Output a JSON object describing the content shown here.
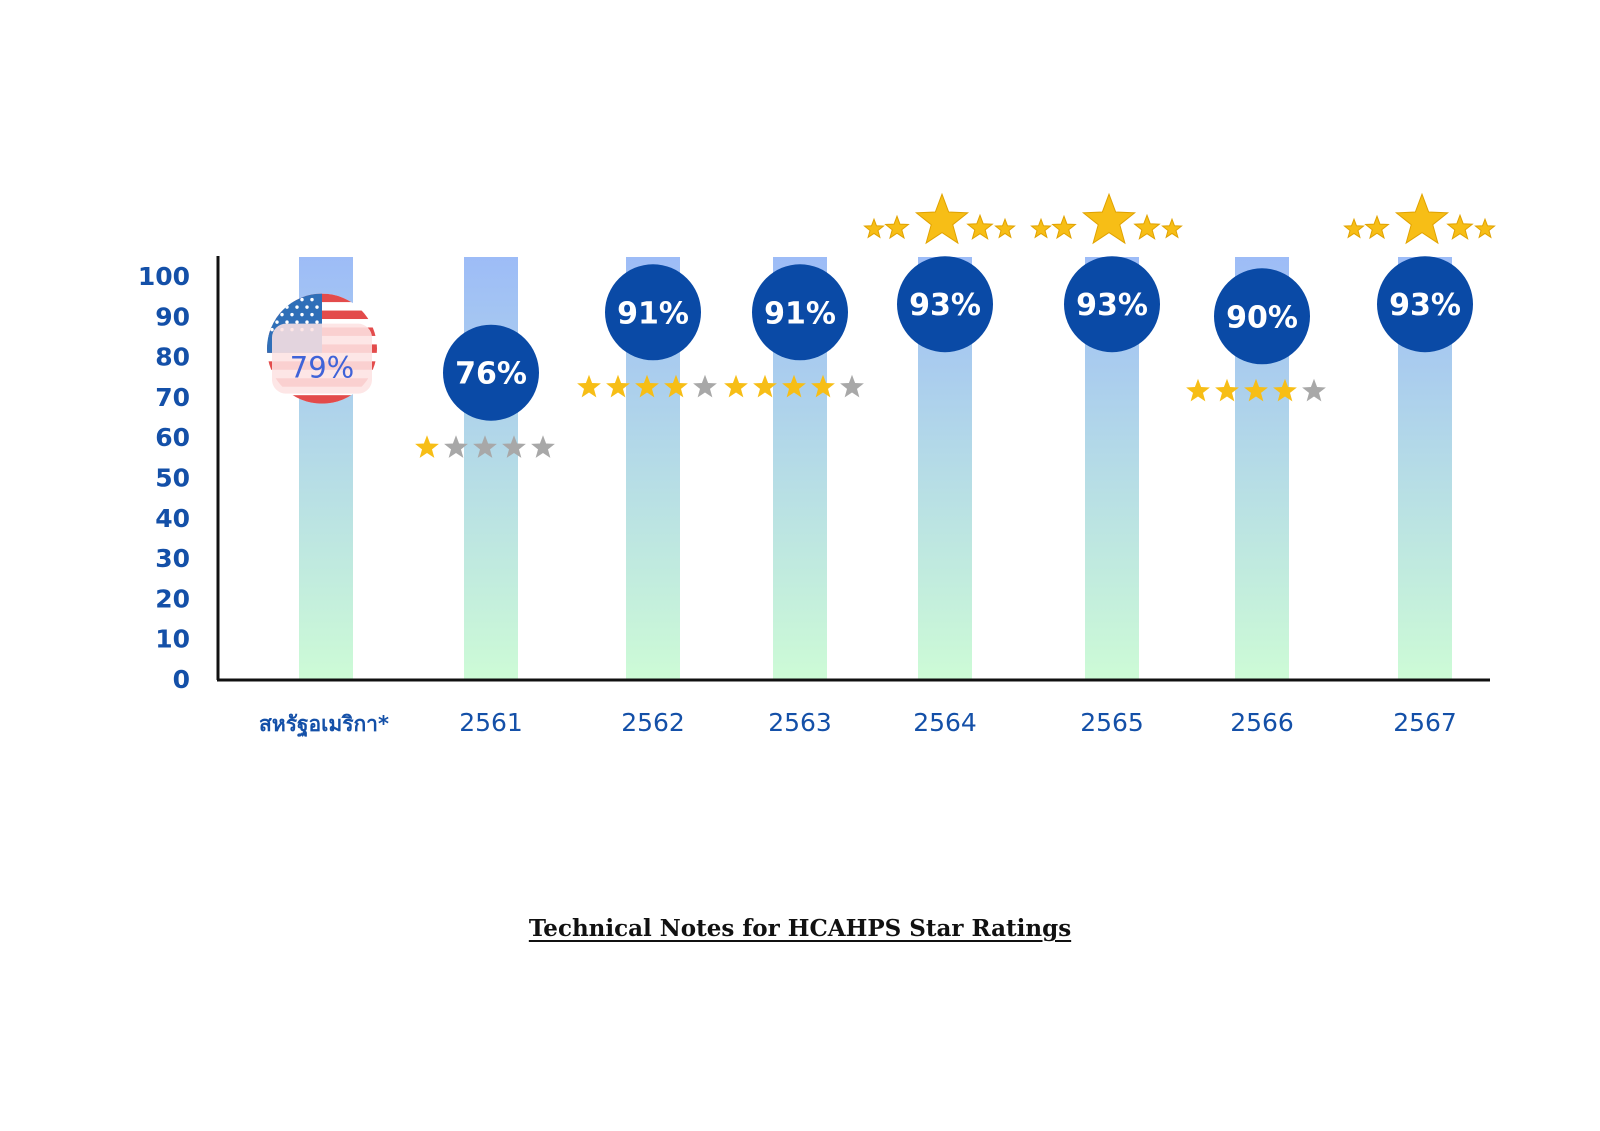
{
  "chart_data": {
    "type": "bar",
    "title": "",
    "xlabel": "",
    "ylabel": "",
    "ylim": [
      0,
      100
    ],
    "yticks": [
      0,
      10,
      20,
      30,
      40,
      50,
      60,
      70,
      80,
      90,
      100
    ],
    "grid": false,
    "categories": [
      "สหรัฐอเมริกา*",
      "2561",
      "2562",
      "2563",
      "2564",
      "2565",
      "2566",
      "2567"
    ],
    "values": [
      79,
      76,
      91,
      91,
      93,
      93,
      90,
      93
    ],
    "value_labels": [
      "79%",
      "76%",
      "91%",
      "91%",
      "93%",
      "93%",
      "90%",
      "93%"
    ],
    "star_ratings": [
      null,
      1,
      4,
      4,
      5,
      5,
      4,
      5
    ],
    "reference_category": "สหรัฐอเมริกา*",
    "reference_marker": "us-flag-icon",
    "colors": {
      "axis": "#111111",
      "tick_text": "#1450a8",
      "bar_top": "#9dbcf7",
      "bar_bottom": "#cdfbd6",
      "bubble": "#0a4aa6",
      "bubble_text": "#ffffff",
      "reference_text": "#3f63d8",
      "star_on": "#f7be16",
      "star_off": "#a8a8a8"
    }
  },
  "footnote": "Technical Notes for HCAHPS Star Ratings"
}
